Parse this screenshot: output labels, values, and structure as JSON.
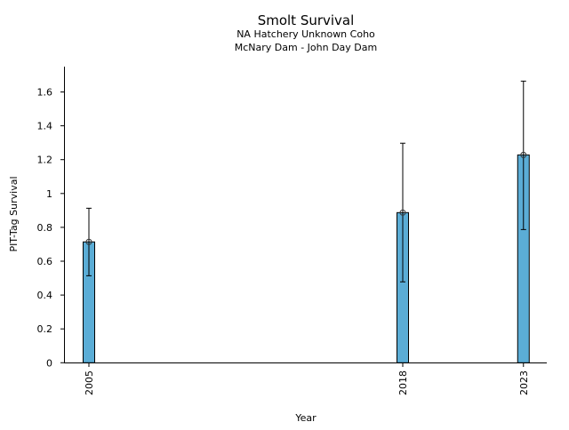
{
  "chart_data": {
    "type": "bar",
    "title": "Smolt Survival",
    "subtitle_lines": [
      "NA Hatchery Unknown Coho",
      "McNary Dam - John Day Dam"
    ],
    "xlabel": "Year",
    "ylabel": "PIT-Tag Survival",
    "categories": [
      "2005",
      "2018",
      "2023"
    ],
    "x": [
      2005,
      2018,
      2023
    ],
    "values": [
      0.714,
      0.887,
      1.228
    ],
    "error_upper": [
      0.913,
      1.297,
      1.664
    ],
    "error_lower": [
      0.514,
      0.478,
      0.787
    ],
    "xlim": [
      2002.3,
      2023.9
    ],
    "ylim": [
      0,
      1.74
    ],
    "yticks": [
      0,
      0.2,
      0.4,
      0.6,
      0.8,
      1,
      1.2,
      1.4,
      1.6
    ],
    "ytick_labels": [
      "0",
      "0.2",
      "0.4",
      "0.6",
      "0.8",
      "1",
      "1.2",
      "1.4",
      "1.6"
    ],
    "bar_color": "#5badd6",
    "grid": false
  }
}
